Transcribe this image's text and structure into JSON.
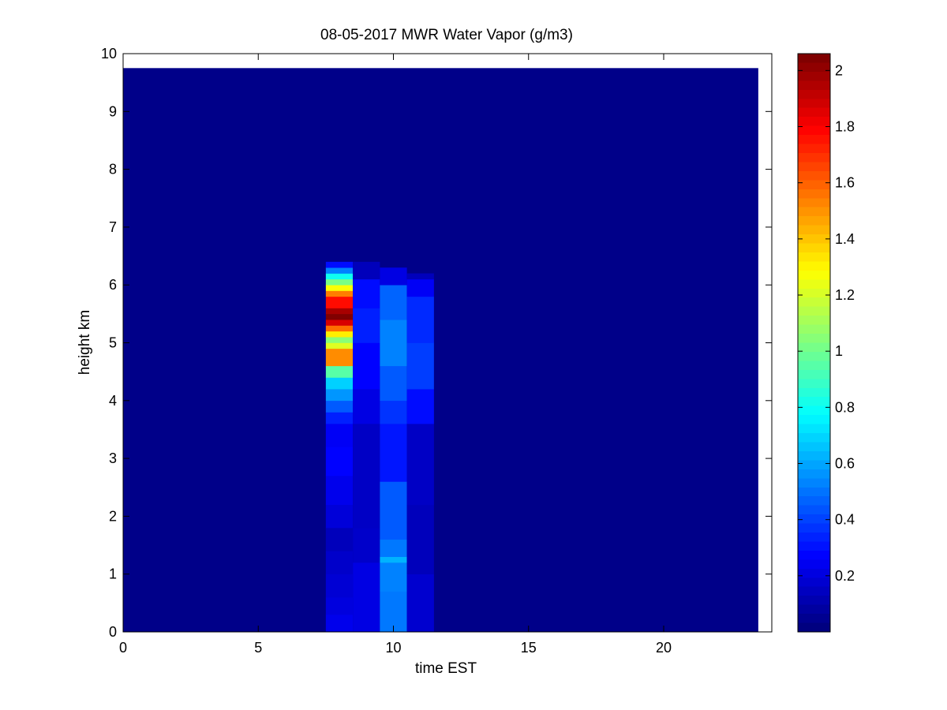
{
  "chart_data": {
    "type": "heatmap",
    "title": "08-05-2017 MWR Water Vapor (g/m3)",
    "xlabel": "time EST",
    "ylabel": "height km",
    "xlim": [
      0,
      24
    ],
    "ylim": [
      0,
      10
    ],
    "x_ticks": [
      0,
      5,
      10,
      15,
      20
    ],
    "y_ticks": [
      0,
      1,
      2,
      3,
      4,
      5,
      6,
      7,
      8,
      9,
      10
    ],
    "colormap": "jet",
    "colorbar": {
      "min": 0.0,
      "max": 2.06,
      "ticks": [
        0.2,
        0.4,
        0.6,
        0.8,
        1,
        1.2,
        1.4,
        1.6,
        1.8,
        2
      ],
      "tick_labels": [
        "0.2",
        "0.4",
        "0.6",
        "0.8",
        "1",
        "1.2",
        "1.4",
        "1.6",
        "1.8",
        "2"
      ]
    },
    "background_value": 0.02,
    "data_extent": {
      "x": [
        0,
        23.5
      ],
      "y": [
        0,
        9.75
      ]
    },
    "columns": [
      {
        "x0": 7.5,
        "x1": 8.5,
        "cells": [
          {
            "y0": 0.0,
            "y1": 0.3,
            "v": 0.22
          },
          {
            "y0": 0.3,
            "y1": 0.6,
            "v": 0.19
          },
          {
            "y0": 0.6,
            "y1": 1.0,
            "v": 0.17
          },
          {
            "y0": 1.0,
            "y1": 1.4,
            "v": 0.15
          },
          {
            "y0": 1.4,
            "y1": 1.8,
            "v": 0.12
          },
          {
            "y0": 1.8,
            "y1": 2.2,
            "v": 0.18
          },
          {
            "y0": 2.2,
            "y1": 2.7,
            "v": 0.22
          },
          {
            "y0": 2.7,
            "y1": 3.2,
            "v": 0.26
          },
          {
            "y0": 3.2,
            "y1": 3.6,
            "v": 0.24
          },
          {
            "y0": 3.6,
            "y1": 3.8,
            "v": 0.32
          },
          {
            "y0": 3.8,
            "y1": 4.0,
            "v": 0.44
          },
          {
            "y0": 4.0,
            "y1": 4.2,
            "v": 0.56
          },
          {
            "y0": 4.2,
            "y1": 4.4,
            "v": 0.68
          },
          {
            "y0": 4.4,
            "y1": 4.6,
            "v": 0.95
          },
          {
            "y0": 4.6,
            "y1": 4.9,
            "v": 1.52
          },
          {
            "y0": 4.9,
            "y1": 5.0,
            "v": 1.22
          },
          {
            "y0": 5.0,
            "y1": 5.1,
            "v": 1.05
          },
          {
            "y0": 5.1,
            "y1": 5.2,
            "v": 1.32
          },
          {
            "y0": 5.2,
            "y1": 5.3,
            "v": 1.58
          },
          {
            "y0": 5.3,
            "y1": 5.4,
            "v": 1.88
          },
          {
            "y0": 5.4,
            "y1": 5.5,
            "v": 2.06
          },
          {
            "y0": 5.5,
            "y1": 5.6,
            "v": 1.98
          },
          {
            "y0": 5.6,
            "y1": 5.8,
            "v": 1.78
          },
          {
            "y0": 5.8,
            "y1": 5.9,
            "v": 1.55
          },
          {
            "y0": 5.9,
            "y1": 6.0,
            "v": 1.28
          },
          {
            "y0": 6.0,
            "y1": 6.1,
            "v": 1.02
          },
          {
            "y0": 6.1,
            "y1": 6.2,
            "v": 0.8
          },
          {
            "y0": 6.2,
            "y1": 6.3,
            "v": 0.52
          },
          {
            "y0": 6.3,
            "y1": 6.4,
            "v": 0.28
          }
        ]
      },
      {
        "x0": 8.5,
        "x1": 9.5,
        "cells": [
          {
            "y0": 0.0,
            "y1": 1.2,
            "v": 0.2
          },
          {
            "y0": 1.2,
            "y1": 1.8,
            "v": 0.15
          },
          {
            "y0": 1.8,
            "y1": 3.6,
            "v": 0.14
          },
          {
            "y0": 3.6,
            "y1": 4.2,
            "v": 0.2
          },
          {
            "y0": 4.2,
            "y1": 5.0,
            "v": 0.26
          },
          {
            "y0": 5.0,
            "y1": 5.6,
            "v": 0.32
          },
          {
            "y0": 5.6,
            "y1": 6.1,
            "v": 0.28
          },
          {
            "y0": 6.1,
            "y1": 6.4,
            "v": 0.12
          }
        ]
      },
      {
        "x0": 9.5,
        "x1": 10.5,
        "cells": [
          {
            "y0": 0.0,
            "y1": 0.7,
            "v": 0.5
          },
          {
            "y0": 0.7,
            "y1": 1.2,
            "v": 0.52
          },
          {
            "y0": 1.2,
            "y1": 1.3,
            "v": 0.62
          },
          {
            "y0": 1.3,
            "y1": 1.6,
            "v": 0.5
          },
          {
            "y0": 1.6,
            "y1": 2.6,
            "v": 0.44
          },
          {
            "y0": 2.6,
            "y1": 3.6,
            "v": 0.3
          },
          {
            "y0": 3.6,
            "y1": 4.0,
            "v": 0.36
          },
          {
            "y0": 4.0,
            "y1": 4.6,
            "v": 0.44
          },
          {
            "y0": 4.6,
            "y1": 5.4,
            "v": 0.52
          },
          {
            "y0": 5.4,
            "y1": 6.0,
            "v": 0.46
          },
          {
            "y0": 6.0,
            "y1": 6.3,
            "v": 0.2
          }
        ]
      },
      {
        "x0": 10.5,
        "x1": 11.5,
        "cells": [
          {
            "y0": 0.0,
            "y1": 1.0,
            "v": 0.16
          },
          {
            "y0": 1.0,
            "y1": 2.2,
            "v": 0.12
          },
          {
            "y0": 2.2,
            "y1": 3.6,
            "v": 0.14
          },
          {
            "y0": 3.6,
            "y1": 4.2,
            "v": 0.28
          },
          {
            "y0": 4.2,
            "y1": 5.0,
            "v": 0.38
          },
          {
            "y0": 5.0,
            "y1": 5.8,
            "v": 0.34
          },
          {
            "y0": 5.8,
            "y1": 6.1,
            "v": 0.24
          },
          {
            "y0": 6.1,
            "y1": 6.2,
            "v": 0.12
          }
        ]
      }
    ]
  }
}
